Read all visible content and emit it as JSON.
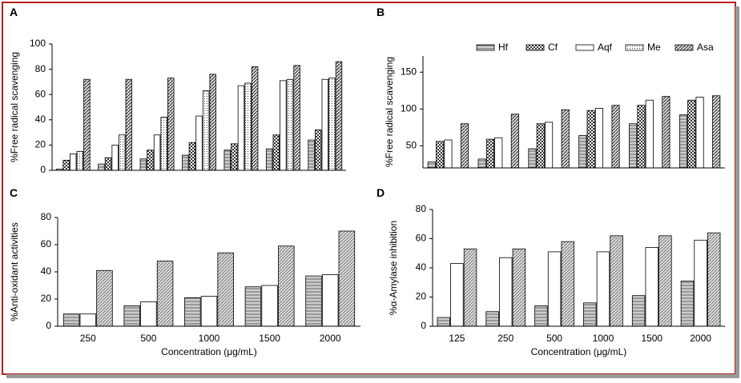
{
  "chart_data": [
    {
      "type": "bar",
      "label": "A",
      "ylabel": "%Free radical scavenging",
      "categories": [
        null,
        null,
        null,
        null,
        null,
        null,
        null
      ],
      "ylim": [
        0,
        100
      ],
      "yticks": [
        0,
        20,
        40,
        60,
        80,
        100
      ],
      "series": [
        {
          "color": "#555555",
          "values": [
            1,
            5,
            9,
            12,
            16,
            17,
            24
          ]
        },
        {
          "color": "#333333",
          "values": [
            8,
            10,
            16,
            22,
            21,
            28,
            32
          ]
        },
        {
          "color": "#666666",
          "values": [
            13,
            20,
            28,
            43,
            67,
            71,
            72
          ]
        },
        {
          "color": "#444444",
          "values": [
            15,
            28,
            42,
            63,
            69,
            72,
            73
          ]
        },
        {
          "color": "#222222",
          "values": [
            72,
            72,
            73,
            76,
            82,
            83,
            86
          ]
        }
      ]
    },
    {
      "type": "bar",
      "label": "B",
      "ylabel": "%Free radical scavenging",
      "categories": [
        null,
        null,
        null,
        null,
        null,
        null
      ],
      "ylim": [
        20,
        172
      ],
      "yticks": [
        50,
        100,
        150
      ],
      "legend": "top-right",
      "series": [
        {
          "name": "Hf",
          "color": "#555555",
          "values": [
            28,
            32,
            46,
            64,
            80,
            92
          ]
        },
        {
          "name": "Cf",
          "color": "#333333",
          "values": [
            56,
            59,
            80,
            98,
            105,
            112
          ]
        },
        {
          "name": "Aqf",
          "color": "#666666",
          "values": [
            58,
            61,
            82,
            101,
            112,
            116
          ]
        },
        {
          "name": "Me",
          "color": "#444444",
          "values": [
            null,
            null,
            null,
            null,
            null,
            null
          ]
        },
        {
          "name": "Asa",
          "color": "#222222",
          "values": [
            80,
            93,
            99,
            105,
            117,
            118
          ]
        }
      ]
    },
    {
      "type": "bar",
      "label": "C",
      "ylabel": "%Anti-oxidant activities",
      "xlabel": "Concentration (μg/mL)",
      "categories": [
        "250",
        "500",
        "1000",
        "1500",
        "2000"
      ],
      "ylim": [
        0,
        80
      ],
      "yticks": [
        0,
        20,
        40,
        60,
        80
      ],
      "series": [
        {
          "color": "#555555",
          "values": [
            9,
            15,
            21,
            29,
            37
          ]
        },
        {
          "color": "#666666",
          "values": [
            9,
            18,
            22,
            30,
            38
          ]
        },
        {
          "color": "#777777",
          "values": [
            41,
            48,
            54,
            59,
            70
          ]
        }
      ]
    },
    {
      "type": "bar",
      "label": "D",
      "ylabel": "%α-Amylase inhibition",
      "xlabel": "Concentration (μg/mL)",
      "categories": [
        "125",
        "250",
        "500",
        "1000",
        "1500",
        "2000"
      ],
      "ylim": [
        0,
        80
      ],
      "yticks": [
        0,
        20,
        40,
        60,
        80
      ],
      "series": [
        {
          "color": "#555555",
          "values": [
            6,
            10,
            14,
            16,
            21,
            31
          ]
        },
        {
          "color": "#666666",
          "values": [
            43,
            47,
            51,
            51,
            54,
            59
          ]
        },
        {
          "color": "#777777",
          "values": [
            53,
            53,
            58,
            62,
            62,
            64
          ]
        }
      ]
    }
  ]
}
